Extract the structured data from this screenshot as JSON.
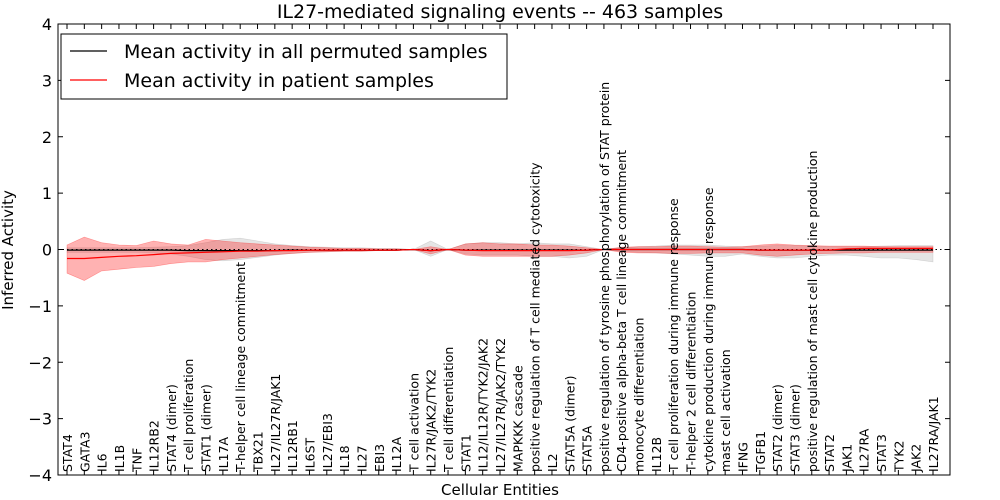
{
  "chart_data": {
    "type": "line",
    "title": "IL27-mediated signaling events -- 463 samples",
    "xlabel": "Cellular Entities",
    "ylabel": "Inferred Activity",
    "ylim": [
      -4,
      4
    ],
    "yticks": [
      -4,
      -3,
      -2,
      -1,
      0,
      1,
      2,
      3,
      4
    ],
    "grid": false,
    "legend_position": "top-left",
    "categories": [
      "STAT4",
      "GATA3",
      "IL6",
      "IL1B",
      "TNF",
      "IL12RB2",
      "STAT4 (dimer)",
      "T cell proliferation",
      "STAT1 (dimer)",
      "IL17A",
      "T-helper cell lineage commitment",
      "TBX21",
      "IL27/IL27R/JAK1",
      "IL12RB1",
      "IL6ST",
      "IL27/EBI3",
      "IL18",
      "IL27",
      "EBI3",
      "IL12A",
      "T cell activation",
      "IL27R/JAK2/TYK2",
      "T cell differentiation",
      "STAT1",
      "IL12/IL12R/TYK2/JAK2",
      "IL27/IL27R/JAK2/TYK2",
      "MAPKKK cascade",
      "positive regulation of T cell mediated cytotoxicity",
      "IL2",
      "STAT5A (dimer)",
      "STAT5A",
      "positive regulation of tyrosine phosphorylation of STAT protein",
      "CD4-positive alpha-beta T cell lineage commitment",
      "monocyte differentiation",
      "IL12B",
      "T cell proliferation during immune response",
      "T-helper 2 cell differentiation",
      "cytokine production during immune response",
      "mast cell activation",
      "IFNG",
      "TGFB1",
      "STAT2 (dimer)",
      "STAT3 (dimer)",
      "positive regulation of mast cell cytokine production",
      "STAT2",
      "JAK1",
      "IL27RA",
      "STAT3",
      "TYK2",
      "JAK2",
      "IL27RA/JAK1"
    ],
    "series": [
      {
        "name": "Mean activity in all permuted samples",
        "color": "#000000",
        "values": [
          -0.01,
          -0.01,
          -0.01,
          -0.01,
          -0.01,
          -0.01,
          -0.01,
          -0.02,
          -0.02,
          -0.02,
          -0.02,
          -0.02,
          -0.02,
          -0.01,
          -0.01,
          -0.01,
          -0.01,
          -0.01,
          -0.01,
          -0.01,
          0.0,
          -0.02,
          0.0,
          -0.01,
          -0.01,
          -0.01,
          -0.01,
          -0.01,
          -0.01,
          -0.01,
          -0.01,
          0.0,
          0.0,
          0.0,
          0.0,
          0.0,
          0.0,
          0.0,
          0.0,
          0.0,
          -0.01,
          -0.01,
          -0.01,
          -0.01,
          -0.01,
          -0.01,
          -0.01,
          -0.01,
          -0.01,
          -0.01,
          -0.01
        ],
        "band_upper": [
          0.03,
          0.03,
          0.03,
          0.03,
          0.03,
          0.04,
          0.05,
          0.07,
          0.12,
          0.18,
          0.2,
          0.15,
          0.1,
          0.07,
          0.05,
          0.04,
          0.03,
          0.03,
          0.02,
          0.02,
          0.0,
          0.15,
          0.0,
          0.1,
          0.12,
          0.12,
          0.1,
          0.12,
          0.1,
          0.1,
          0.05,
          0.0,
          0.03,
          0.05,
          0.06,
          0.08,
          0.08,
          0.08,
          0.06,
          0.05,
          0.06,
          0.07,
          0.07,
          0.06,
          0.05,
          0.05,
          0.05,
          0.06,
          0.07,
          0.07,
          0.07
        ],
        "band_lower": [
          -0.05,
          -0.05,
          -0.05,
          -0.05,
          -0.05,
          -0.06,
          -0.08,
          -0.12,
          -0.18,
          -0.2,
          -0.18,
          -0.14,
          -0.1,
          -0.07,
          -0.05,
          -0.04,
          -0.03,
          -0.03,
          -0.02,
          -0.02,
          0.0,
          -0.12,
          0.0,
          -0.08,
          -0.1,
          -0.1,
          -0.1,
          -0.12,
          -0.12,
          -0.15,
          -0.12,
          0.0,
          -0.03,
          -0.05,
          -0.06,
          -0.08,
          -0.1,
          -0.12,
          -0.12,
          -0.08,
          -0.12,
          -0.15,
          -0.15,
          -0.12,
          -0.1,
          -0.1,
          -0.12,
          -0.15,
          -0.15,
          -0.18,
          -0.22
        ]
      },
      {
        "name": "Mean activity in patient samples",
        "color": "#ff0000",
        "values": [
          -0.16,
          -0.16,
          -0.14,
          -0.12,
          -0.11,
          -0.09,
          -0.07,
          -0.06,
          -0.05,
          -0.04,
          -0.03,
          -0.03,
          -0.02,
          -0.02,
          -0.01,
          -0.01,
          -0.01,
          -0.01,
          -0.01,
          -0.01,
          0.0,
          -0.02,
          0.0,
          -0.01,
          -0.02,
          -0.02,
          -0.02,
          -0.02,
          -0.02,
          -0.02,
          -0.01,
          0.0,
          0.0,
          0.0,
          0.0,
          0.0,
          0.0,
          0.0,
          0.0,
          0.0,
          -0.01,
          -0.01,
          -0.01,
          -0.01,
          -0.01,
          0.01,
          0.02,
          0.02,
          0.02,
          0.02,
          0.02
        ],
        "band_upper": [
          0.08,
          0.22,
          0.12,
          0.08,
          0.07,
          0.15,
          0.1,
          0.08,
          0.18,
          0.15,
          0.12,
          0.1,
          0.08,
          0.06,
          0.04,
          0.03,
          0.02,
          0.02,
          0.01,
          0.01,
          0.0,
          0.05,
          0.0,
          0.1,
          0.12,
          0.1,
          0.1,
          0.08,
          0.08,
          0.06,
          0.03,
          0.0,
          0.04,
          0.05,
          0.05,
          0.06,
          0.06,
          0.05,
          0.04,
          0.05,
          0.08,
          0.1,
          0.08,
          0.07,
          0.06,
          0.06,
          0.06,
          0.05,
          0.05,
          0.05,
          0.05
        ],
        "band_lower": [
          -0.42,
          -0.55,
          -0.38,
          -0.35,
          -0.32,
          -0.3,
          -0.25,
          -0.22,
          -0.22,
          -0.18,
          -0.15,
          -0.12,
          -0.09,
          -0.07,
          -0.05,
          -0.04,
          -0.03,
          -0.03,
          -0.02,
          -0.02,
          0.0,
          -0.08,
          0.0,
          -0.1,
          -0.12,
          -0.12,
          -0.12,
          -0.12,
          -0.12,
          -0.1,
          -0.06,
          0.0,
          -0.05,
          -0.06,
          -0.06,
          -0.07,
          -0.07,
          -0.06,
          -0.06,
          -0.06,
          -0.1,
          -0.12,
          -0.1,
          -0.08,
          -0.07,
          -0.06,
          -0.06,
          -0.05,
          -0.05,
          -0.05,
          -0.05
        ]
      }
    ]
  }
}
